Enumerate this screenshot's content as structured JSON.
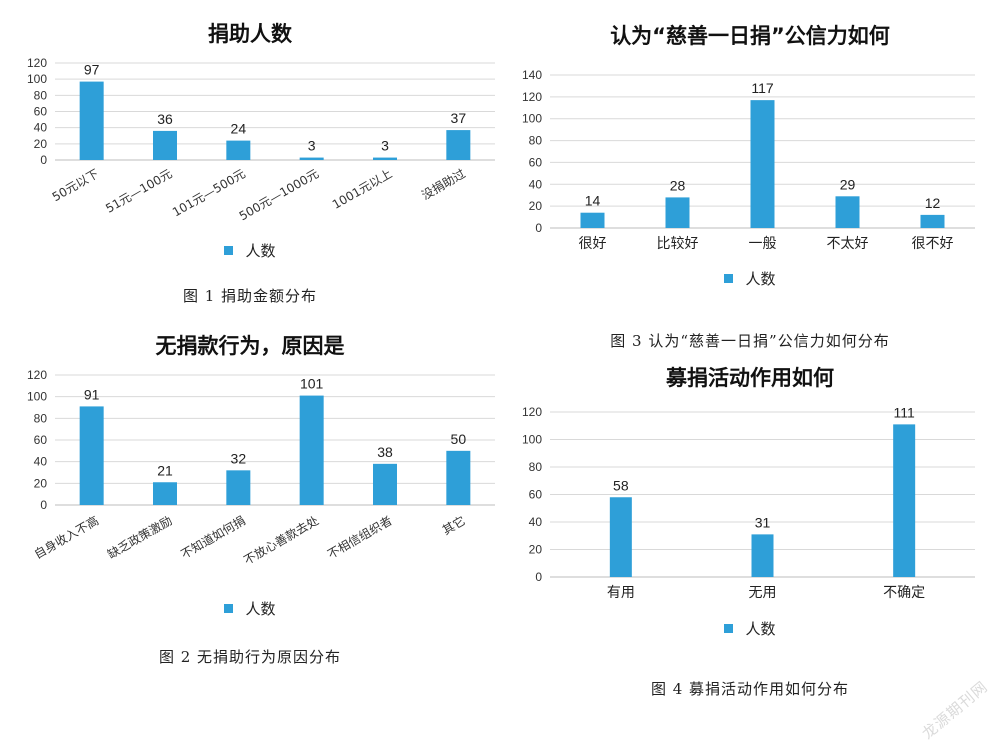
{
  "chart_data": [
    {
      "type": "bar",
      "title": "捐助人数",
      "categories": [
        "50元以下",
        "51元—100元",
        "101元—500元",
        "500元—1000元",
        "1001元以上",
        "没捐助过"
      ],
      "series": [
        {
          "name": "人数",
          "values": [
            97,
            36,
            24,
            3,
            3,
            37
          ]
        }
      ],
      "yticks": [
        0,
        20,
        40,
        60,
        80,
        100,
        120
      ],
      "ylim": [
        0,
        120
      ],
      "grid": true,
      "legend": "bottom",
      "caption": "图 1  捐助金额分布",
      "color": "#2e9fd8"
    },
    {
      "type": "bar",
      "title": "无捐款行为，原因是",
      "categories": [
        "自身收入不高",
        "缺乏政策激励",
        "不知道如何捐",
        "不放心善款去处",
        "不相信组织者",
        "其它"
      ],
      "series": [
        {
          "name": "人数",
          "values": [
            91,
            21,
            32,
            101,
            38,
            50
          ]
        }
      ],
      "yticks": [
        0,
        20,
        40,
        60,
        80,
        100,
        120
      ],
      "ylim": [
        0,
        120
      ],
      "grid": true,
      "legend": "bottom",
      "caption": "图 2   无捐助行为原因分布",
      "color": "#2e9fd8"
    },
    {
      "type": "bar",
      "title": "认为“慈善一日捐”公信力如何",
      "categories": [
        "很好",
        "比较好",
        "一般",
        "不太好",
        "很不好"
      ],
      "series": [
        {
          "name": "人数",
          "values": [
            14,
            28,
            117,
            29,
            12
          ]
        }
      ],
      "yticks": [
        0,
        20,
        40,
        60,
        80,
        100,
        120,
        140
      ],
      "ylim": [
        0,
        140
      ],
      "grid": true,
      "legend": "bottom",
      "caption": "图 3   认为“慈善一日捐”公信力如何分布",
      "color": "#2e9fd8"
    },
    {
      "type": "bar",
      "title": "募捐活动作用如何",
      "categories": [
        "有用",
        "无用",
        "不确定"
      ],
      "series": [
        {
          "name": "人数",
          "values": [
            58,
            31,
            111
          ]
        }
      ],
      "yticks": [
        0,
        20,
        40,
        60,
        80,
        100,
        120
      ],
      "ylim": [
        0,
        120
      ],
      "grid": true,
      "legend": "bottom",
      "caption": "图 4  募捐活动作用如何分布",
      "color": "#2e9fd8"
    }
  ],
  "watermark": "龙源期刊网"
}
